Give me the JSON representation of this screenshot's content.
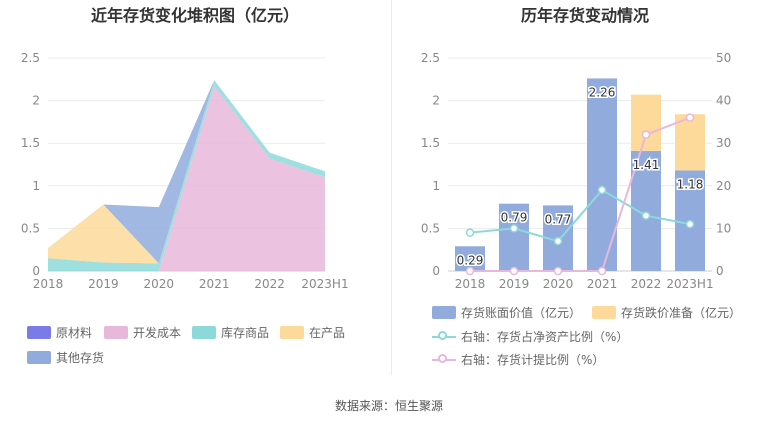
{
  "left_title": "近年存货变化堆积图（亿元）",
  "right_title": "历年存货变动情况",
  "source": "数据来源：恒生聚源",
  "chart_data": [
    {
      "type": "area",
      "stacked": true,
      "title": "近年存货变化堆积图（亿元）",
      "categories": [
        "2018",
        "2019",
        "2020",
        "2021",
        "2022",
        "2023H1"
      ],
      "ylim": [
        0,
        2.5
      ],
      "yticks": [
        "0",
        "0.5",
        "1",
        "1.5",
        "2",
        "2.5"
      ],
      "series": [
        {
          "name": "原材料",
          "color": "#7b7be8",
          "values": [
            0,
            0,
            0,
            0,
            0,
            0
          ]
        },
        {
          "name": "开发成本",
          "color": "#e8b8db",
          "values": [
            0,
            0,
            0,
            2.17,
            1.32,
            1.1
          ]
        },
        {
          "name": "库存商品",
          "color": "#8dd9d9",
          "values": [
            0.15,
            0.1,
            0.09,
            0.07,
            0.07,
            0.07
          ]
        },
        {
          "name": "在产品",
          "color": "#fdd99a",
          "values": [
            0.12,
            0.68,
            0.0,
            0.0,
            0.0,
            0.0
          ]
        },
        {
          "name": "其他存货",
          "color": "#91abdd",
          "values": [
            0.0,
            0.0,
            0.66,
            0.0,
            0.0,
            0.0
          ]
        }
      ],
      "legend": [
        "原材料",
        "开发成本",
        "库存商品",
        "在产品",
        "其他存货"
      ],
      "grid": true
    },
    {
      "type": "bar",
      "stacked": true,
      "title": "历年存货变动情况",
      "categories": [
        "2018",
        "2019",
        "2020",
        "2021",
        "2022",
        "2023H1"
      ],
      "ylim": [
        0,
        2.5
      ],
      "yticks": [
        "0",
        "0.5",
        "1",
        "1.5",
        "2",
        "2.5"
      ],
      "y2lim": [
        0,
        50
      ],
      "y2ticks": [
        "0",
        "10",
        "20",
        "30",
        "40",
        "50"
      ],
      "bar_series": [
        {
          "name": "存货账面价值（亿元）",
          "color": "#91abdd",
          "values": [
            0.29,
            0.79,
            0.77,
            2.26,
            1.41,
            1.18
          ],
          "labels": [
            "0.29",
            "0.79",
            "0.77",
            "2.26",
            "1.41",
            "1.18"
          ]
        },
        {
          "name": "存货跌价准备（亿元）",
          "color": "#fdd99a",
          "values": [
            0,
            0,
            0,
            0,
            0.66,
            0.66
          ]
        }
      ],
      "line_series": [
        {
          "name": "右轴：存货占净资产比例（%）",
          "color": "#8dd9d9",
          "values": [
            9,
            10,
            7,
            19,
            13,
            11
          ]
        },
        {
          "name": "右轴：存货计提比例（%）",
          "color": "#e8b8db",
          "values": [
            0,
            0,
            0,
            0,
            32,
            36
          ]
        }
      ],
      "grid": true
    }
  ]
}
